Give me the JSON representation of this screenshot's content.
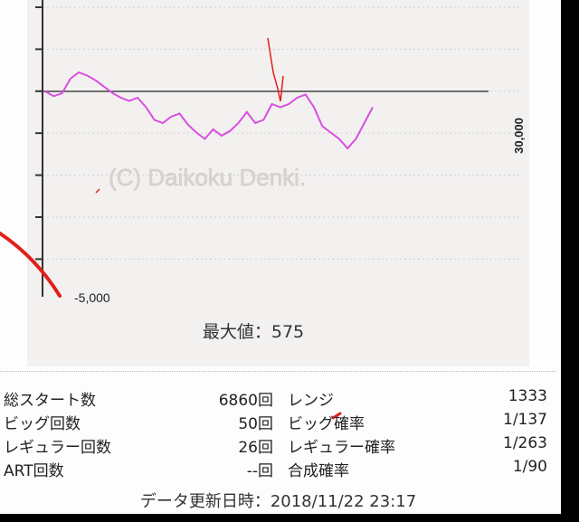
{
  "chart_data": {
    "type": "line",
    "ylabel_right": "30,000",
    "y_min_label": "-5,000",
    "watermark": "(C) Daikoku Denki.",
    "max_label": "最大値：575",
    "colors": {
      "line": "#d94de0",
      "grid": "#cfcfcf",
      "zero_line": "#444444"
    },
    "series": [
      {
        "values": [
          0,
          -150,
          -60,
          400,
          600,
          500,
          350,
          150,
          -50,
          -200,
          -300,
          -200,
          -500,
          -900,
          -1000,
          -800,
          -700,
          -1050,
          -1300,
          -1500,
          -1200,
          -1400,
          -1250,
          -1000,
          -650,
          -1000,
          -900,
          -400,
          -500,
          -400,
          -200,
          -100,
          -500,
          -1100,
          -1300,
          -1500,
          -1800,
          -1500,
          -1000,
          -500
        ]
      }
    ]
  },
  "stats": [
    {
      "label": "総スタート数",
      "value": "6860回",
      "label2": "レンジ",
      "value2": "1333"
    },
    {
      "label": "ビッグ回数",
      "value": "50回",
      "label2": "ビッグ確率",
      "value2": "1/137"
    },
    {
      "label": "レギュラー回数",
      "value": "26回",
      "label2": "レギュラー確率",
      "value2": "1/263"
    },
    {
      "label": "ART回数",
      "value": "--回",
      "label2": "合成確率",
      "value2": "1/90"
    }
  ],
  "updated": "データ更新日時：2018/11/22 23:17"
}
